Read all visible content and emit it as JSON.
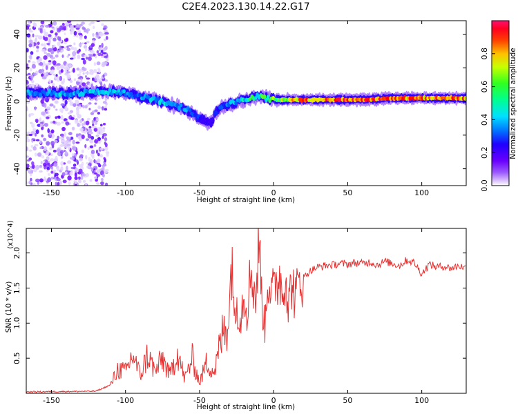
{
  "title": "C2E4.2023.130.14.22.G17",
  "colors": {
    "snr_line": "#e53030",
    "background": "#ffffff",
    "axis": "#000000",
    "colormap": [
      "#ffffff",
      "#d9c6ff",
      "#8f55ff",
      "#6a00ff",
      "#1f00ff",
      "#0060ff",
      "#00c8ff",
      "#00ffc0",
      "#30ff30",
      "#c8ff00",
      "#ffd000",
      "#ff6000",
      "#ff0000",
      "#ff1060"
    ]
  },
  "chart_data": [
    {
      "type": "heatmap",
      "name": "spectrogram",
      "xlabel": "Height of straight line (km)",
      "ylabel": "Frequency (Hz)",
      "xlim": [
        -167,
        130
      ],
      "ylim": [
        -50,
        48
      ],
      "xticks": [
        -150,
        -100,
        -50,
        0,
        50,
        100
      ],
      "yticks": [
        -40,
        -20,
        0,
        20,
        40
      ],
      "colorbar": {
        "label": "Normalized spectral amplitude",
        "range": [
          0,
          1
        ],
        "ticks": [
          0.0,
          0.2,
          0.4,
          0.6,
          0.8
        ]
      },
      "ridge": {
        "x": [
          -167,
          -150,
          -130,
          -110,
          -100,
          -90,
          -80,
          -70,
          -60,
          -55,
          -50,
          -45,
          -42,
          -40,
          -35,
          -30,
          -25,
          -20,
          -15,
          -10,
          -5,
          0,
          10,
          20,
          40,
          60,
          80,
          100,
          120,
          130
        ],
        "freq": [
          5,
          5,
          5,
          6,
          5,
          3,
          1,
          -2,
          -4,
          -7,
          -10,
          -12,
          -13,
          -8,
          -3,
          -2,
          0,
          1,
          2,
          3,
          2,
          1,
          1,
          1,
          1,
          1,
          2,
          2,
          2,
          2
        ],
        "amplitude": [
          0.45,
          0.5,
          0.5,
          0.5,
          0.45,
          0.45,
          0.5,
          0.5,
          0.45,
          0.4,
          0.35,
          0.3,
          0.3,
          0.35,
          0.4,
          0.45,
          0.5,
          0.55,
          0.6,
          0.6,
          0.65,
          0.7,
          0.8,
          0.9,
          0.95,
          0.95,
          0.9,
          0.9,
          0.9,
          0.9
        ]
      },
      "noise_band": {
        "x_range": [
          -167,
          -112
        ],
        "freq_range": [
          -50,
          48
        ]
      }
    },
    {
      "type": "line",
      "name": "snr",
      "xlabel": "Height of straight line (km)",
      "ylabel": "SNR (10 * v/v)",
      "y_multiplier": "(x10^4)",
      "xlim": [
        -167,
        130
      ],
      "ylim": [
        0,
        23500
      ],
      "xticks": [
        -150,
        -100,
        -50,
        0,
        50,
        100
      ],
      "yticks": [
        5000,
        10000,
        15000,
        20000
      ],
      "series": [
        {
          "x": [
            -167,
            -120,
            -110,
            -105,
            -100,
            -95,
            -90,
            -85,
            -80,
            -75,
            -70,
            -65,
            -60,
            -55,
            -50,
            -45,
            -40,
            -35,
            -32,
            -30,
            -28,
            -26,
            -25,
            -22,
            -20,
            -18,
            -15,
            -12,
            -10,
            -8,
            -6,
            -4,
            -2,
            0,
            2,
            4,
            6,
            8,
            10,
            12,
            15,
            18,
            20,
            25,
            30,
            35,
            40,
            45,
            50,
            55,
            60,
            65,
            70,
            75,
            80,
            85,
            90,
            95,
            100,
            105,
            110,
            115,
            120,
            125,
            130
          ],
          "y": [
            200,
            300,
            1200,
            3500,
            3000,
            5500,
            2500,
            5500,
            3000,
            5000,
            2500,
            6000,
            2000,
            5000,
            1500,
            4500,
            3000,
            8000,
            10000,
            12000,
            20000,
            9000,
            13000,
            11000,
            15000,
            12000,
            18000,
            13000,
            22000,
            14000,
            9000,
            17000,
            15000,
            14000,
            16000,
            17000,
            14000,
            18000,
            12000,
            16000,
            13500,
            17000,
            16500,
            17500,
            18000,
            18200,
            18300,
            18500,
            18400,
            18600,
            18500,
            18700,
            18300,
            18800,
            18500,
            18200,
            19000,
            18600,
            17000,
            18400,
            18000,
            18100,
            17800,
            18200,
            17800
          ]
        }
      ]
    }
  ]
}
